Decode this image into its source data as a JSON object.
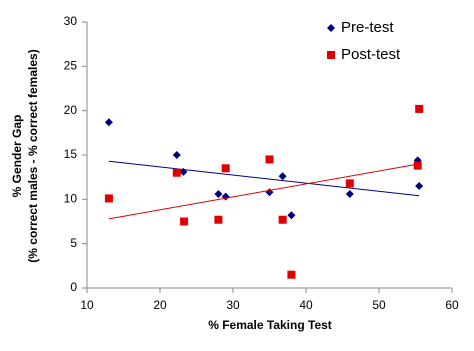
{
  "chart_data": {
    "type": "scatter",
    "xlabel": "% Female Taking Test",
    "ylabel": [
      "% Gender Gap",
      "(% correct males - % correct females)"
    ],
    "xlim": [
      10,
      60
    ],
    "xticks": [
      10,
      20,
      30,
      40,
      50,
      60
    ],
    "ylim": [
      0,
      30
    ],
    "yticks": [
      0,
      5,
      10,
      15,
      20,
      25,
      30
    ],
    "grid": false,
    "legend": "top-right",
    "series": [
      {
        "name": "Pre-test",
        "color": "#00007f",
        "marker": "diamond",
        "x": [
          13,
          22.3,
          23.2,
          28,
          29,
          35,
          36.8,
          38,
          46,
          55.3,
          55.5
        ],
        "values": [
          18.7,
          15,
          13.1,
          10.6,
          10.3,
          10.8,
          12.6,
          8.2,
          10.6,
          14.4,
          11.5
        ],
        "trend": {
          "x": [
            13,
            55.5
          ],
          "values": [
            14.3,
            10.4
          ]
        }
      },
      {
        "name": "Post-test",
        "color": "#e00000",
        "marker": "square",
        "x": [
          13,
          22.3,
          23.3,
          28,
          29,
          35,
          36.8,
          38,
          46,
          55.3,
          55.5
        ],
        "values": [
          10.1,
          13,
          7.5,
          7.7,
          13.5,
          14.5,
          7.7,
          1.5,
          11.8,
          13.8,
          20.2
        ],
        "trend": {
          "x": [
            13,
            55.5
          ],
          "values": [
            7.8,
            14.0
          ]
        }
      }
    ]
  }
}
